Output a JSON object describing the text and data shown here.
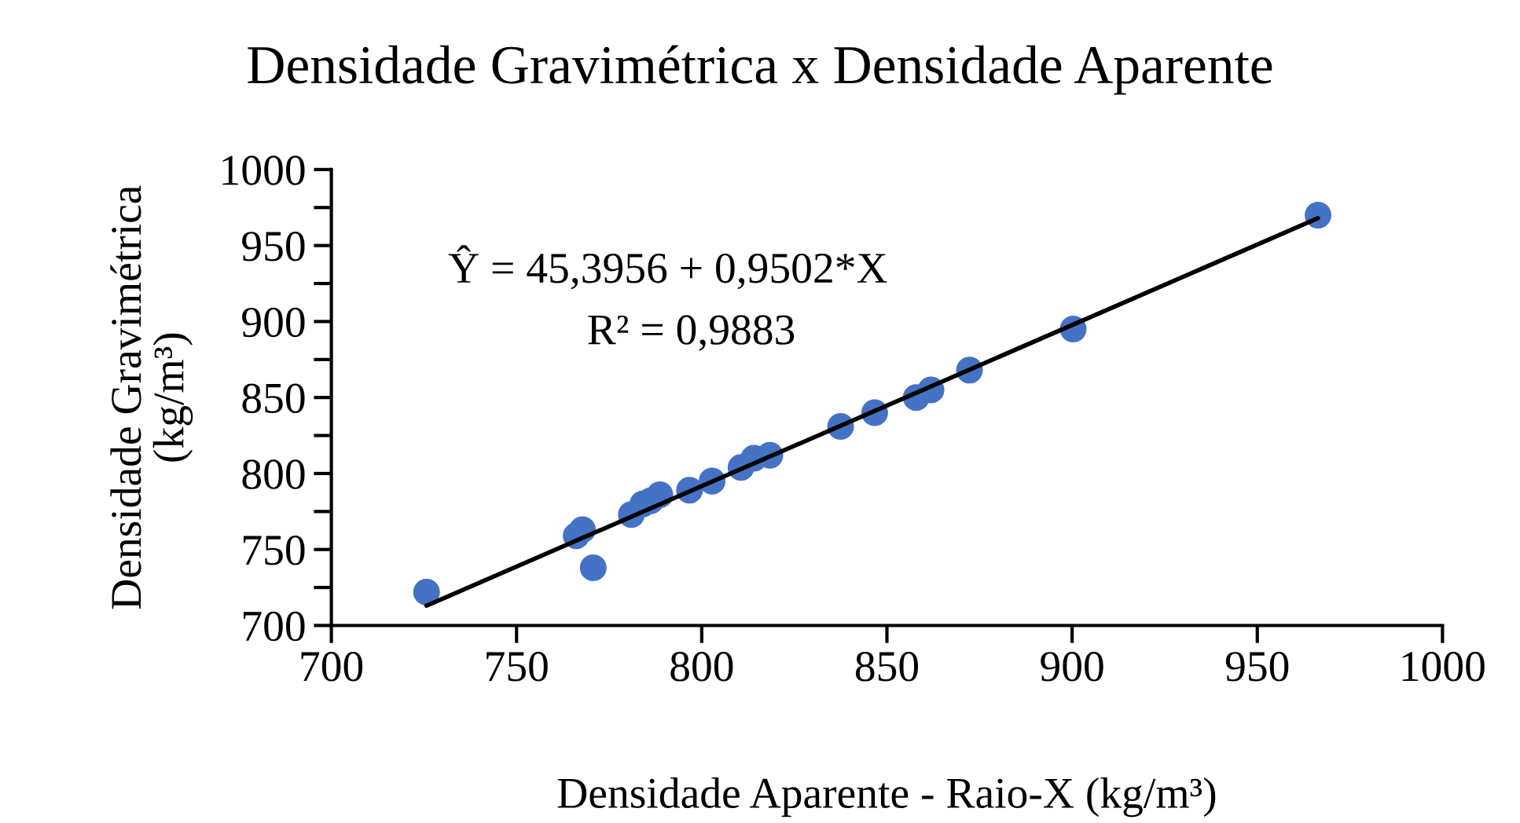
{
  "chart_data": {
    "type": "scatter",
    "title": "Densidade Gravimétrica x Densidade Aparente",
    "xlabel": "Densidade Aparente - Raio-X (kg/m³)",
    "ylabel": "Densidade Gravimétrica\n(kg/m³)",
    "annotations": [
      "Ŷ = 45,3956 + 0,9502*X",
      "R² = 0,9883"
    ],
    "series": [
      {
        "color": "#4472c4",
        "marker": "circle",
        "x": [
          725.7,
          766.1,
          767.8,
          770.7,
          781.0,
          784.1,
          786.2,
          788.7,
          796.7,
          802.8,
          810.6,
          814.1,
          818.4,
          837.5,
          846.7,
          857.9,
          861.9,
          872.3,
          900.3,
          966.4
        ],
        "values": [
          722,
          759,
          763,
          738,
          773,
          780,
          782,
          786,
          789,
          795,
          804,
          810,
          812,
          831,
          840,
          850,
          855,
          868,
          895,
          970
        ]
      },
      {
        "type": "line",
        "color": "#000000",
        "x": [
          725.7,
          966.4
        ],
        "values": [
          713,
          968
        ]
      }
    ],
    "xlim": [
      700,
      1000
    ],
    "xticks": [
      700,
      750,
      800,
      850,
      900,
      950,
      1000
    ],
    "ylim": [
      700,
      1000
    ],
    "yticks": [
      700,
      {
        "value": 725,
        "label": null
      },
      750,
      {
        "value": 775,
        "label": null
      },
      800,
      {
        "value": 825,
        "label": null
      },
      850,
      {
        "value": 875,
        "label": null
      },
      900,
      {
        "value": 925,
        "label": null
      },
      950,
      {
        "value": 975,
        "label": null
      },
      1000
    ],
    "grid": false,
    "legend": false
  }
}
